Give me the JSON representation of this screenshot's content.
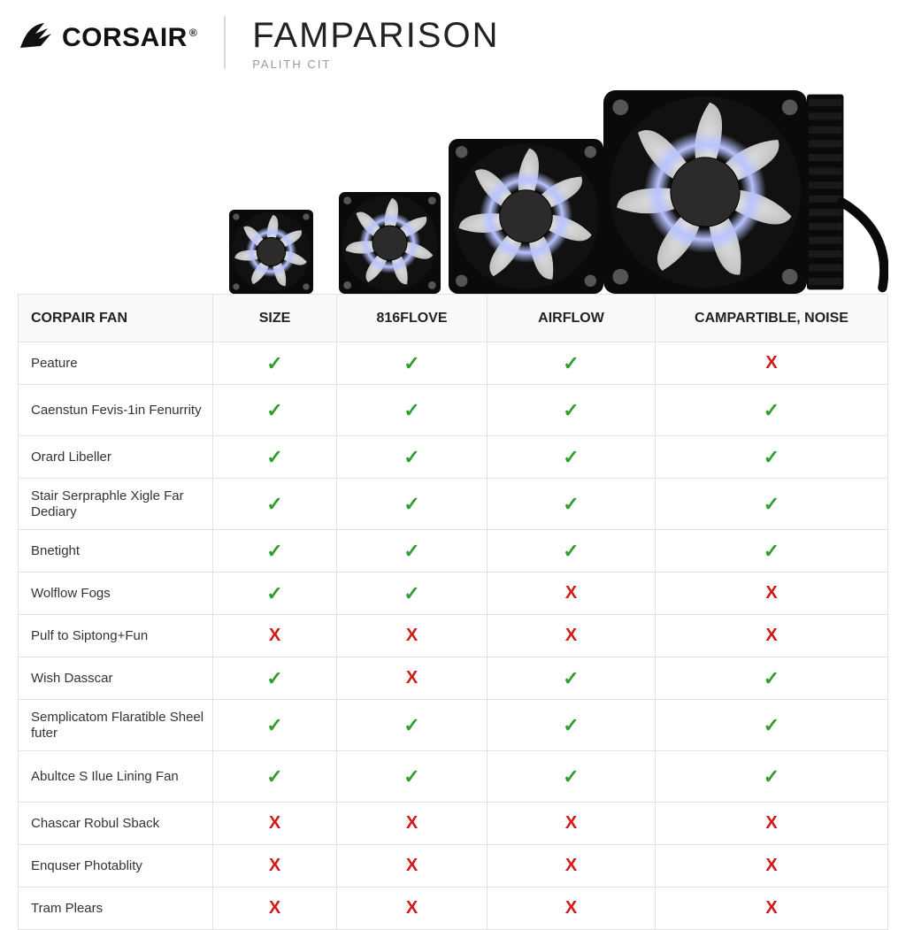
{
  "brand": {
    "name": "CORSAIR",
    "reg": "®"
  },
  "header": {
    "title": "FAMPARISON",
    "subtitle": "PALITH CIT"
  },
  "fans": {
    "sizes": [
      95,
      115,
      175,
      230
    ],
    "frame_color": "#0a0a0a",
    "hub_color": "#2b2b2b",
    "ring_glow": "#b9c3ff",
    "blade_light": "#e3e3e3",
    "blade_dark": "#bdbdbd",
    "screw_color": "#555555",
    "last_has_radiator": true,
    "radiator_color": "#0a0a0a",
    "tube_color": "#0a0a0a"
  },
  "table": {
    "columns": [
      "CORPAIR FAN",
      "SIZE",
      "816FLOVE",
      "AIRFLOW",
      "CAMPARTIBLE, NOISE"
    ],
    "rows": [
      {
        "label": "Peature",
        "cells": [
          "y",
          "y",
          "y",
          "n"
        ],
        "tall": false
      },
      {
        "label": "Caenstun Fevis-1in Fenurrity",
        "cells": [
          "y",
          "y",
          "y",
          "y"
        ],
        "tall": true
      },
      {
        "label": "Orard Libeller",
        "cells": [
          "y",
          "y",
          "y",
          "y"
        ],
        "tall": false
      },
      {
        "label": "Stair Serpraphle Xigle Far Dediary",
        "cells": [
          "y",
          "y",
          "y",
          "y"
        ],
        "tall": true
      },
      {
        "label": "Bnetight",
        "cells": [
          "y",
          "y",
          "y",
          "y"
        ],
        "tall": false
      },
      {
        "label": "Wolflow Fogs",
        "cells": [
          "y",
          "y",
          "n",
          "n"
        ],
        "tall": false
      },
      {
        "label": "Pulf to Siptong+Fun",
        "cells": [
          "n",
          "n",
          "n",
          "n"
        ],
        "tall": false
      },
      {
        "label": "Wish Dasscar",
        "cells": [
          "y",
          "n",
          "y",
          "y"
        ],
        "tall": false
      },
      {
        "label": "Semplicatom Flaratible Sheel futer",
        "cells": [
          "y",
          "y",
          "y",
          "y"
        ],
        "tall": true
      },
      {
        "label": "Abultce S Ilue Lining Fan",
        "cells": [
          "y",
          "y",
          "y",
          "y"
        ],
        "tall": true
      },
      {
        "label": "Chascar Robul Sback",
        "cells": [
          "n",
          "n",
          "n",
          "n"
        ],
        "tall": false
      },
      {
        "label": "Enquser Photablity",
        "cells": [
          "n",
          "n",
          "n",
          "n"
        ],
        "tall": false
      },
      {
        "label": "Tram Plears",
        "cells": [
          "n",
          "n",
          "n",
          "n"
        ],
        "tall": false
      }
    ],
    "check_glyph": "✓",
    "cross_glyph": "X"
  }
}
